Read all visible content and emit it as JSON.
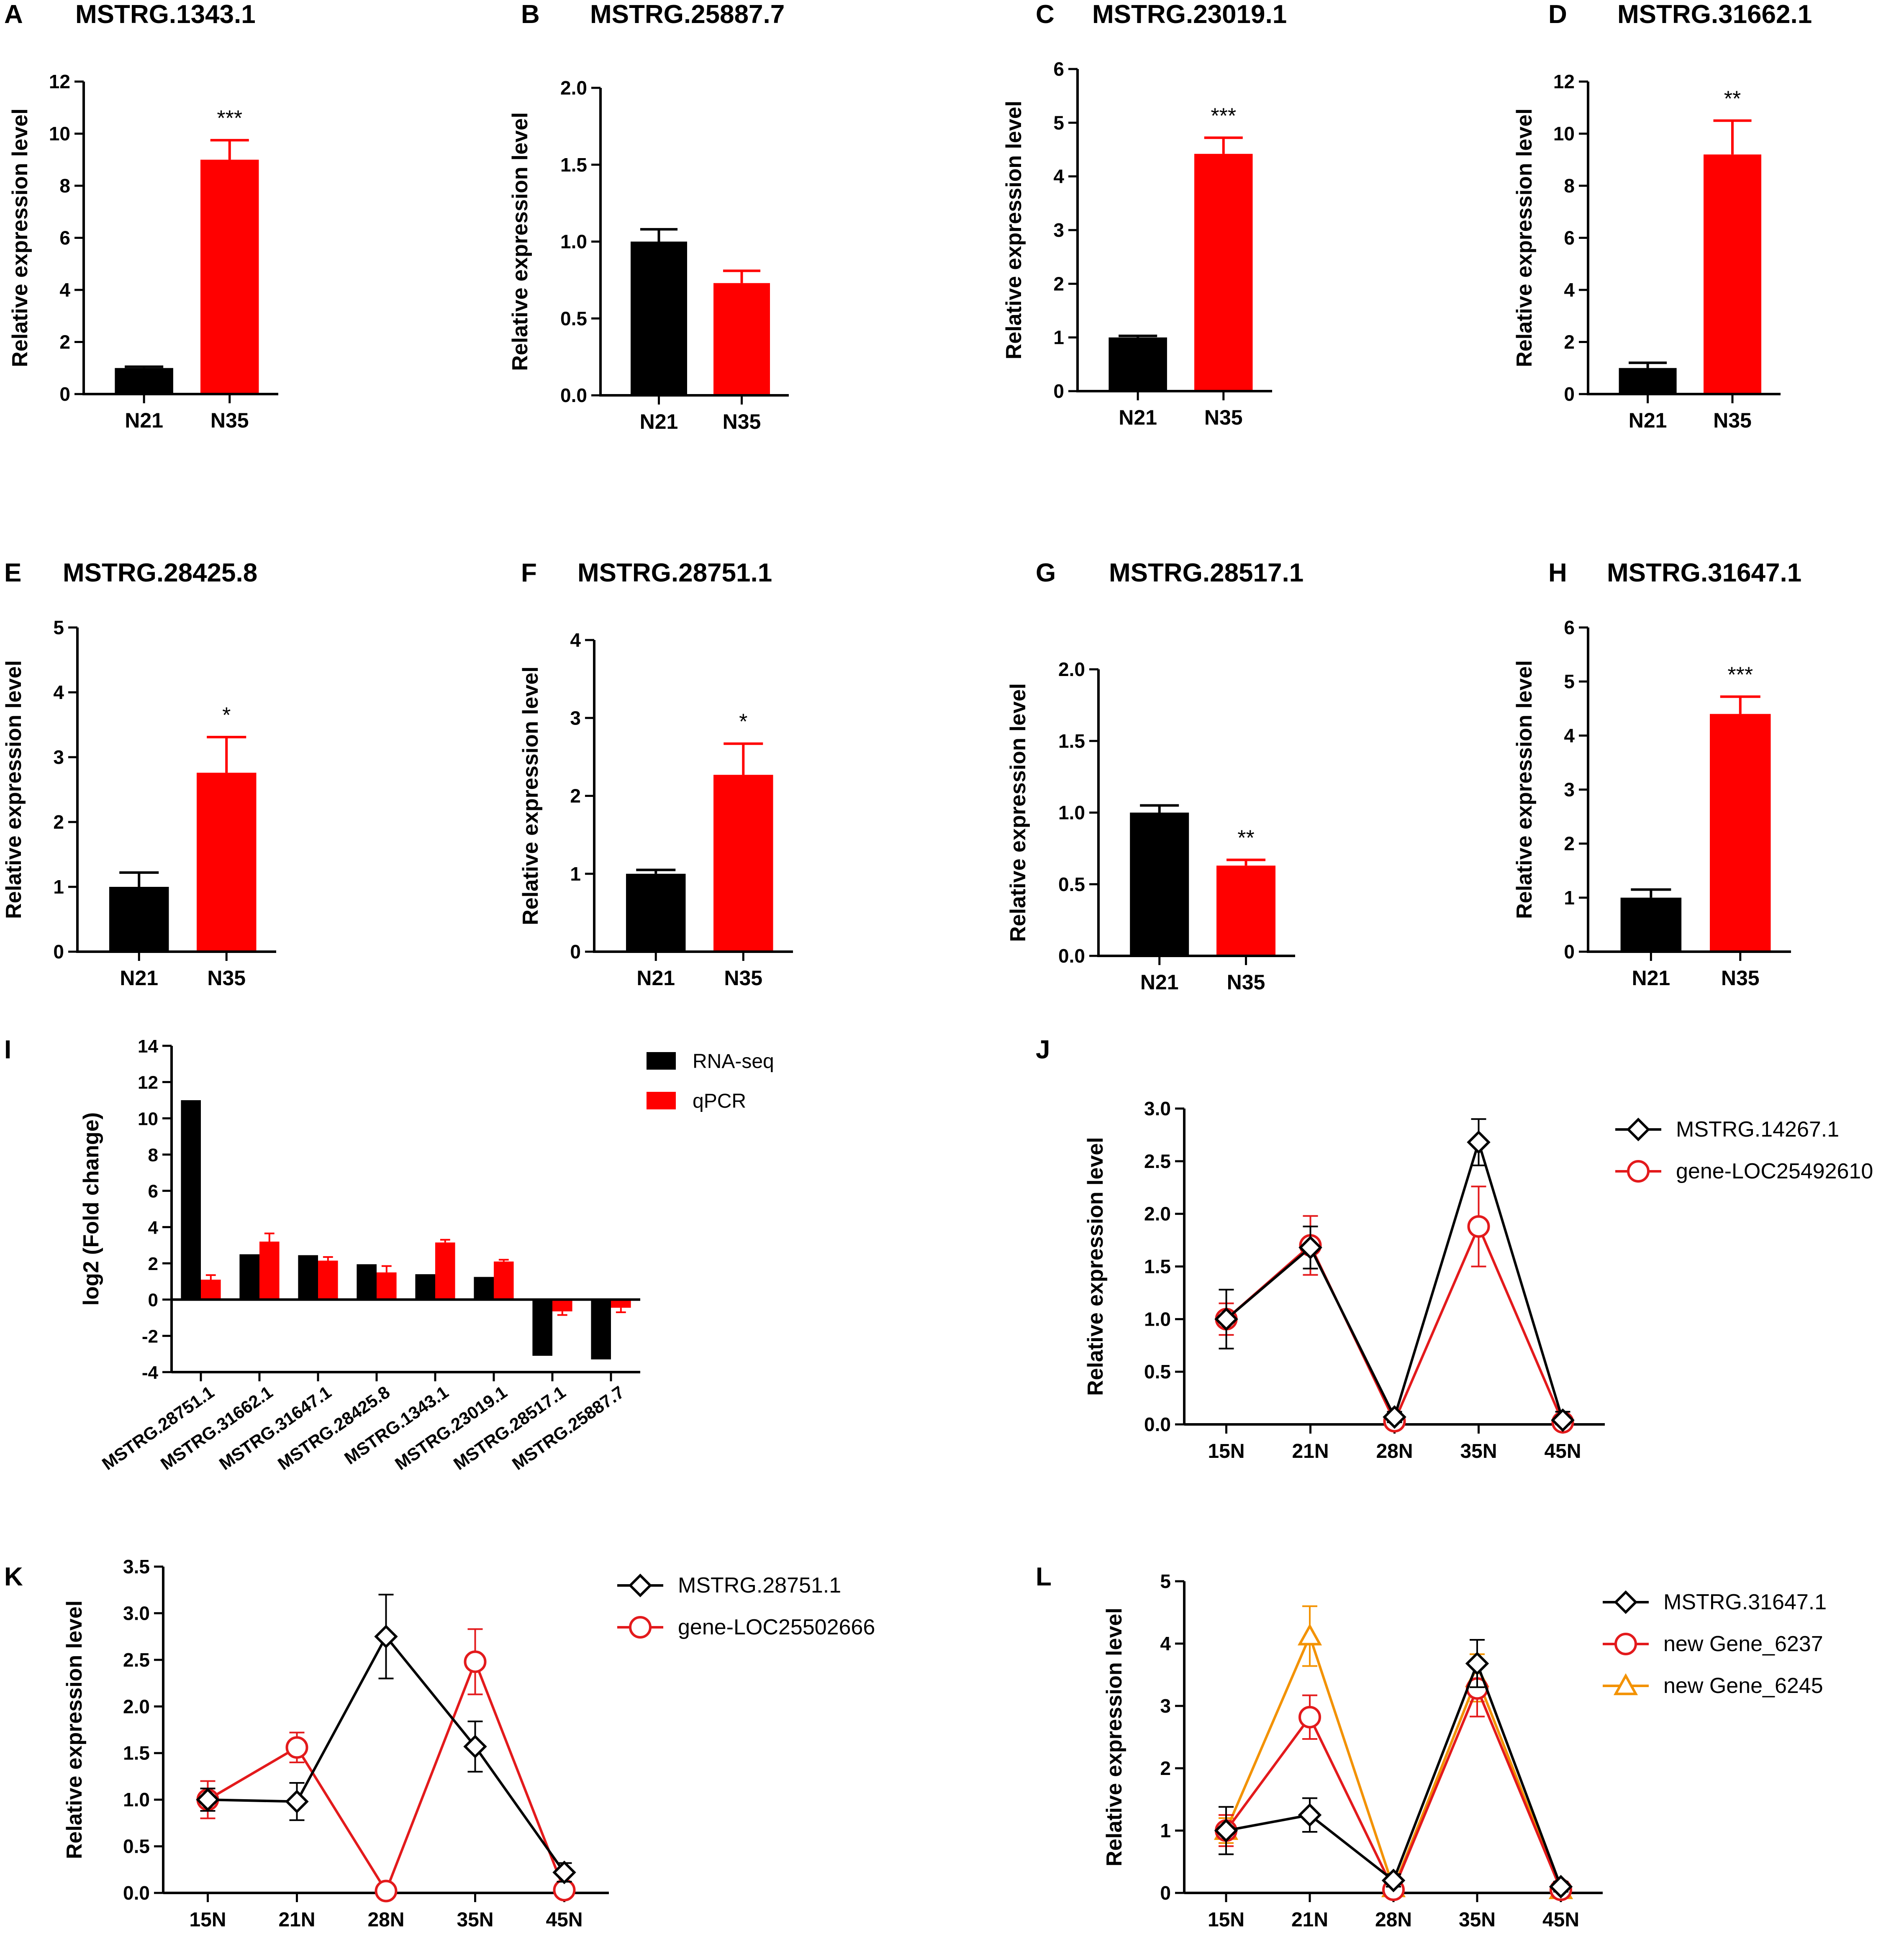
{
  "figure_colors": {
    "black": "#000000",
    "red": "#ff0000",
    "red_line": "#e31a1c",
    "orange": "#f39200"
  },
  "chart_data": [
    {
      "panel": "A",
      "type": "bar",
      "title": "MSTRG.1343.1",
      "ylabel": "Relative expression level",
      "categories": [
        "N21",
        "N35"
      ],
      "values": [
        1.0,
        9.0
      ],
      "errors": [
        0.05,
        0.75
      ],
      "ylim": [
        0,
        12
      ],
      "yticks": [
        0,
        2,
        4,
        6,
        8,
        10,
        12
      ],
      "tick_labels": [
        "0",
        "2",
        "4",
        "6",
        "8",
        "10",
        "12"
      ],
      "significance": "***",
      "colors": [
        "#000000",
        "#ff0000"
      ]
    },
    {
      "panel": "B",
      "type": "bar",
      "title": "MSTRG.25887.7",
      "ylabel": "Relative expression level",
      "categories": [
        "N21",
        "N35"
      ],
      "values": [
        1.0,
        0.73
      ],
      "errors": [
        0.08,
        0.08
      ],
      "ylim": [
        0,
        2
      ],
      "yticks": [
        0,
        0.5,
        1,
        1.5,
        2
      ],
      "tick_labels": [
        "0.0",
        "0.5",
        "1.0",
        "1.5",
        "2.0"
      ],
      "significance": "",
      "colors": [
        "#000000",
        "#ff0000"
      ]
    },
    {
      "panel": "C",
      "type": "bar",
      "title": "MSTRG.23019.1",
      "ylabel": "Relative expression level",
      "categories": [
        "N21",
        "N35"
      ],
      "values": [
        1.0,
        4.42
      ],
      "errors": [
        0.03,
        0.3
      ],
      "ylim": [
        0,
        6
      ],
      "yticks": [
        0,
        1,
        2,
        3,
        4,
        5,
        6
      ],
      "tick_labels": [
        "0",
        "1",
        "2",
        "3",
        "4",
        "5",
        "6"
      ],
      "significance": "***",
      "colors": [
        "#000000",
        "#ff0000"
      ]
    },
    {
      "panel": "D",
      "type": "bar",
      "title": "MSTRG.31662.1",
      "ylabel": "Relative expression level",
      "categories": [
        "N21",
        "N35"
      ],
      "values": [
        1.0,
        9.2
      ],
      "errors": [
        0.2,
        1.3
      ],
      "ylim": [
        0,
        12
      ],
      "yticks": [
        0,
        2,
        4,
        6,
        8,
        10,
        12
      ],
      "tick_labels": [
        "0",
        "2",
        "4",
        "6",
        "8",
        "10",
        "12"
      ],
      "significance": "**",
      "colors": [
        "#000000",
        "#ff0000"
      ]
    },
    {
      "panel": "E",
      "type": "bar",
      "title": "MSTRG.28425.8",
      "ylabel": "Relative expression level",
      "categories": [
        "N21",
        "N35"
      ],
      "values": [
        1.0,
        2.76
      ],
      "errors": [
        0.22,
        0.55
      ],
      "ylim": [
        0,
        5
      ],
      "yticks": [
        0,
        1,
        2,
        3,
        4,
        5
      ],
      "tick_labels": [
        "0",
        "1",
        "2",
        "3",
        "4",
        "5"
      ],
      "significance": "*",
      "colors": [
        "#000000",
        "#ff0000"
      ]
    },
    {
      "panel": "F",
      "type": "bar",
      "title": "MSTRG.28751.1",
      "ylabel": "Relative expression level",
      "categories": [
        "N21",
        "N35"
      ],
      "values": [
        1.0,
        2.27
      ],
      "errors": [
        0.05,
        0.4
      ],
      "ylim": [
        0,
        4
      ],
      "yticks": [
        0,
        1,
        2,
        3,
        4
      ],
      "tick_labels": [
        "0",
        "1",
        "2",
        "3",
        "4"
      ],
      "significance": "*",
      "colors": [
        "#000000",
        "#ff0000"
      ]
    },
    {
      "panel": "G",
      "type": "bar",
      "title": "MSTRG.28517.1",
      "ylabel": "Relative expression level",
      "categories": [
        "N21",
        "N35"
      ],
      "values": [
        1.0,
        0.63
      ],
      "errors": [
        0.05,
        0.04
      ],
      "ylim": [
        0,
        2
      ],
      "yticks": [
        0,
        0.5,
        1,
        1.5,
        2
      ],
      "tick_labels": [
        "0.0",
        "0.5",
        "1.0",
        "1.5",
        "2.0"
      ],
      "significance": "**",
      "colors": [
        "#000000",
        "#ff0000"
      ]
    },
    {
      "panel": "H",
      "type": "bar",
      "title": "MSTRG.31647.1",
      "ylabel": "Relative expression level",
      "categories": [
        "N21",
        "N35"
      ],
      "values": [
        1.0,
        4.4
      ],
      "errors": [
        0.15,
        0.32
      ],
      "ylim": [
        0,
        6
      ],
      "yticks": [
        0,
        1,
        2,
        3,
        4,
        5,
        6
      ],
      "tick_labels": [
        "0",
        "1",
        "2",
        "3",
        "4",
        "5",
        "6"
      ],
      "significance": "***",
      "colors": [
        "#000000",
        "#ff0000"
      ]
    },
    {
      "panel": "I",
      "type": "bar",
      "title": "",
      "ylabel": "log2 (Fold change)",
      "categories": [
        "MSTRG.28751.1",
        "MSTRG.31662.1",
        "MSTRG.31647.1",
        "MSTRG.28425.8",
        "MSTRG.1343.1",
        "MSTRG.23019.1",
        "MSTRG.28517.1",
        "MSTRG.25887.7"
      ],
      "ylim": [
        -4,
        14
      ],
      "yticks": [
        -4,
        -2,
        0,
        2,
        4,
        6,
        8,
        10,
        12,
        14
      ],
      "tick_labels": [
        "-4",
        "-2",
        "0",
        "2",
        "4",
        "6",
        "8",
        "10",
        "12",
        "14"
      ],
      "legend_position": "top-right",
      "series": [
        {
          "name": "RNA-seq",
          "color": "#000000",
          "values": [
            11.0,
            2.5,
            2.45,
            1.95,
            1.4,
            1.25,
            -3.1,
            -3.3
          ],
          "errors": [
            0,
            0,
            0,
            0,
            0,
            0,
            0,
            0
          ]
        },
        {
          "name": "qPCR",
          "color": "#ff0000",
          "values": [
            1.1,
            3.2,
            2.15,
            1.5,
            3.15,
            2.1,
            -0.65,
            -0.45
          ],
          "errors": [
            0.25,
            0.45,
            0.2,
            0.35,
            0.15,
            0.1,
            0.2,
            0.25
          ]
        }
      ]
    },
    {
      "panel": "J",
      "type": "line",
      "title": "",
      "ylabel": "Relative expression level",
      "categories": [
        "15N",
        "21N",
        "28N",
        "35N",
        "45N"
      ],
      "ylim": [
        0,
        3
      ],
      "yticks": [
        0,
        0.5,
        1,
        1.5,
        2,
        2.5,
        3
      ],
      "tick_labels": [
        "0.0",
        "0.5",
        "1.0",
        "1.5",
        "2.0",
        "2.5",
        "3.0"
      ],
      "legend_position": "top-right",
      "series": [
        {
          "name": "MSTRG.14267.1",
          "color": "#000000",
          "marker": "diamond",
          "values": [
            1.0,
            1.68,
            0.07,
            2.68,
            0.04
          ],
          "errors": [
            0.28,
            0.2,
            0.05,
            0.22,
            0.08
          ]
        },
        {
          "name": "gene-LOC25492610",
          "color": "#e31a1c",
          "marker": "circle",
          "values": [
            1.0,
            1.7,
            0.03,
            1.88,
            0.02
          ],
          "errors": [
            0.15,
            0.28,
            0.04,
            0.38,
            0.03
          ]
        }
      ]
    },
    {
      "panel": "K",
      "type": "line",
      "title": "",
      "ylabel": "Relative expression level",
      "categories": [
        "15N",
        "21N",
        "28N",
        "35N",
        "45N"
      ],
      "ylim": [
        0,
        3.5
      ],
      "yticks": [
        0,
        0.5,
        1,
        1.5,
        2,
        2.5,
        3,
        3.5
      ],
      "tick_labels": [
        "0.0",
        "0.5",
        "1.0",
        "1.5",
        "2.0",
        "2.5",
        "3.0",
        "3.5"
      ],
      "legend_position": "top-right",
      "series": [
        {
          "name": "MSTRG.28751.1",
          "color": "#000000",
          "marker": "diamond",
          "values": [
            1.0,
            0.98,
            2.75,
            1.57,
            0.22
          ],
          "errors": [
            0.12,
            0.2,
            0.45,
            0.27,
            0.1
          ]
        },
        {
          "name": "gene-LOC25502666",
          "color": "#e31a1c",
          "marker": "circle",
          "values": [
            1.0,
            1.56,
            0.02,
            2.48,
            0.03
          ],
          "errors": [
            0.2,
            0.16,
            0.03,
            0.35,
            0.05
          ]
        }
      ]
    },
    {
      "panel": "L",
      "type": "line",
      "title": "",
      "ylabel": "Relative expression level",
      "categories": [
        "15N",
        "21N",
        "28N",
        "35N",
        "45N"
      ],
      "ylim": [
        0,
        5
      ],
      "yticks": [
        0,
        1,
        2,
        3,
        4,
        5
      ],
      "tick_labels": [
        "0",
        "1",
        "2",
        "3",
        "4",
        "5"
      ],
      "legend_position": "top-right",
      "series": [
        {
          "name": "MSTRG.31647.1",
          "color": "#000000",
          "marker": "diamond",
          "values": [
            1.0,
            1.25,
            0.2,
            3.68,
            0.1
          ],
          "errors": [
            0.38,
            0.27,
            0.1,
            0.38,
            0.08
          ]
        },
        {
          "name": "new Gene_6237",
          "color": "#e31a1c",
          "marker": "circle",
          "values": [
            1.0,
            2.82,
            0.05,
            3.28,
            0.05
          ],
          "errors": [
            0.25,
            0.35,
            0.08,
            0.45,
            0.05
          ]
        },
        {
          "name": "new Gene_6245",
          "color": "#f39200",
          "marker": "triangle",
          "values": [
            1.0,
            4.12,
            0.08,
            3.45,
            0.05
          ],
          "errors": [
            0.2,
            0.48,
            0.1,
            0.38,
            0.05
          ]
        }
      ]
    }
  ]
}
